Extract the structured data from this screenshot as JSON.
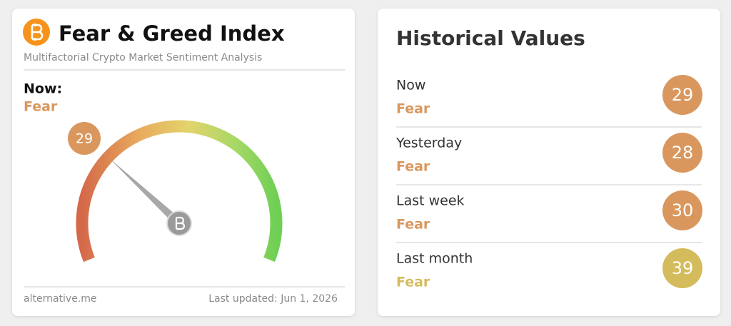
{
  "left": {
    "title": "Fear & Greed Index",
    "subtitle": "Multifactorial Crypto Market Sentiment Analysis",
    "now_label": "Now:",
    "now_class": "Fear",
    "now_color": "#d9975e",
    "gauge": {
      "value": 29,
      "range": [
        0,
        100
      ]
    },
    "source": "alternative.me",
    "updated": "Last updated: Jun 1, 2026"
  },
  "right": {
    "title": "Historical Values",
    "rows": [
      {
        "label": "Now",
        "class": "Fear",
        "value": 29,
        "color": "#d9975e"
      },
      {
        "label": "Yesterday",
        "class": "Fear",
        "value": 28,
        "color": "#d9975e"
      },
      {
        "label": "Last week",
        "class": "Fear",
        "value": 30,
        "color": "#d9975e"
      },
      {
        "label": "Last month",
        "class": "Fear",
        "value": 39,
        "color": "#d4bb5c"
      }
    ]
  }
}
